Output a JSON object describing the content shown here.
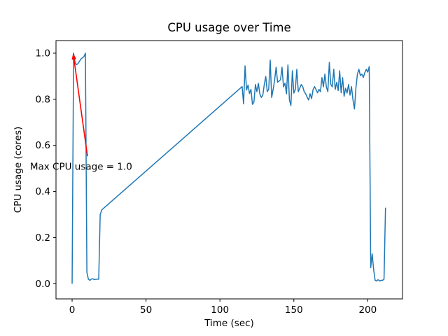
{
  "chart_data": {
    "type": "line",
    "title": "CPU usage over Time",
    "xlabel": "Time (sec)",
    "ylabel": "CPU usage (cores)",
    "line_color": "#1f77b4",
    "line_width": 1.5,
    "grid": false,
    "legend": null,
    "xlim": [
      -10.9,
      223.5
    ],
    "ylim": [
      -0.0655,
      1.0545
    ],
    "xticks": [
      0,
      50,
      100,
      150,
      200
    ],
    "xtick_labels": [
      "0",
      "50",
      "100",
      "150",
      "200"
    ],
    "yticks": [
      0.0,
      0.2,
      0.4,
      0.6,
      0.8,
      1.0
    ],
    "ytick_labels": [
      "0.0",
      "0.2",
      "0.4",
      "0.6",
      "0.8",
      "1.0"
    ],
    "x": [
      0,
      1,
      2,
      3,
      4,
      5,
      6,
      7,
      8,
      9,
      10,
      11,
      12,
      13,
      14,
      15,
      16,
      17,
      18,
      19,
      20,
      115,
      116,
      117,
      118,
      119,
      120,
      121,
      122,
      123,
      124,
      125,
      126,
      127,
      128,
      129,
      130,
      131,
      132,
      133,
      134,
      135,
      136,
      137,
      138,
      139,
      140,
      141,
      142,
      143,
      144,
      145,
      146,
      147,
      148,
      149,
      150,
      151,
      152,
      153,
      154,
      155,
      156,
      157,
      158,
      159,
      160,
      161,
      162,
      163,
      164,
      165,
      166,
      167,
      168,
      169,
      170,
      171,
      172,
      173,
      174,
      175,
      176,
      177,
      178,
      179,
      180,
      181,
      182,
      183,
      184,
      185,
      186,
      187,
      188,
      189,
      190,
      191,
      192,
      193,
      194,
      195,
      196,
      197,
      198,
      199,
      200,
      201,
      202,
      203,
      204,
      205,
      206,
      207,
      208,
      209,
      210,
      211,
      212
    ],
    "y": [
      0.0,
      1.0,
      0.96,
      0.95,
      0.955,
      0.965,
      0.975,
      0.98,
      0.985,
      1.0,
      0.05,
      0.02,
      0.015,
      0.02,
      0.022,
      0.018,
      0.02,
      0.02,
      0.02,
      0.3,
      0.32,
      0.855,
      0.78,
      0.945,
      0.84,
      0.862,
      0.825,
      0.843,
      0.778,
      0.788,
      0.864,
      0.833,
      0.869,
      0.823,
      0.808,
      0.818,
      0.864,
      0.899,
      0.833,
      0.843,
      0.97,
      0.808,
      0.843,
      0.884,
      0.939,
      0.874,
      0.879,
      0.885,
      0.939,
      0.854,
      0.87,
      0.824,
      0.949,
      0.797,
      0.773,
      0.924,
      0.827,
      0.842,
      0.93,
      0.833,
      0.848,
      0.864,
      0.855,
      0.833,
      0.824,
      0.809,
      0.797,
      0.824,
      0.803,
      0.842,
      0.855,
      0.842,
      0.828,
      0.843,
      0.833,
      0.894,
      0.854,
      0.909,
      0.854,
      0.833,
      0.96,
      0.864,
      0.854,
      0.93,
      0.843,
      0.874,
      0.838,
      0.924,
      0.828,
      0.894,
      0.813,
      0.848,
      0.827,
      0.864,
      0.818,
      0.855,
      0.797,
      0.758,
      0.85,
      0.909,
      0.93,
      0.903,
      0.909,
      0.895,
      0.915,
      0.93,
      0.918,
      0.942,
      0.07,
      0.13,
      0.06,
      0.015,
      0.012,
      0.018,
      0.012,
      0.015,
      0.015,
      0.02,
      0.33
    ],
    "annotation": {
      "text": "Max CPU usage = 1.0",
      "color": "#ff0000",
      "xy": [
        0.7,
        1.0
      ],
      "arrow_start": [
        10.4,
        0.553
      ],
      "text_pos": [
        -28.5,
        0.508
      ]
    }
  }
}
